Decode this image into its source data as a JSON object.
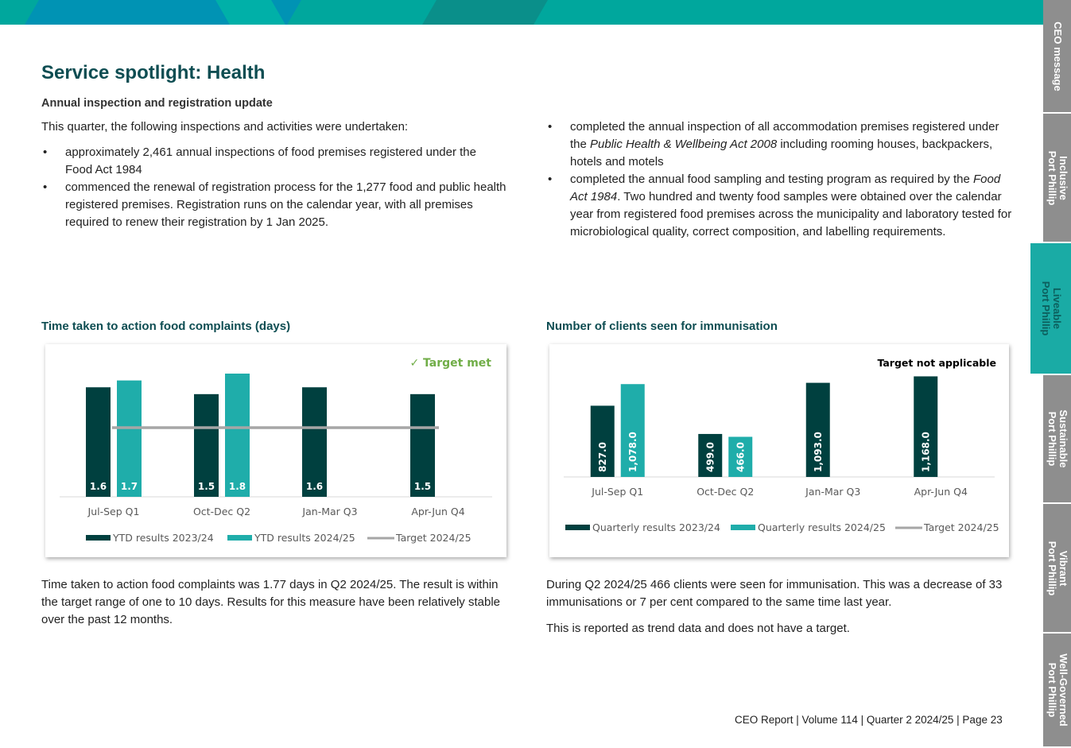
{
  "title": "Service spotlight: Health",
  "subtitle": "Annual inspection and registration update",
  "intro": "This quarter, the following inspections and activities were undertaken:",
  "left_bullets": [
    "approximately 2,461 annual inspections of food premises registered under the Food Act 1984",
    "commenced the renewal of registration process for the 1,277 food and public health registered premises. Registration runs on the calendar year, with all premises required to renew their registration by 1 Jan 2025."
  ],
  "right_bullets": [
    {
      "pre": "completed the annual inspection of all accommodation premises registered under the ",
      "em": "Public Health & Wellbeing Act 2008",
      "post": " including rooming houses, backpackers, hotels and motels"
    },
    {
      "pre": "completed the annual food sampling and testing program as required by the ",
      "em": "Food Act 1984",
      "post": ". Two hundred and twenty food samples were obtained over the calendar year from registered food premises across the municipality and laboratory tested for microbiological quality, correct composition, and labelling requirements."
    }
  ],
  "chart1_title": "Time taken to action food complaints (days)",
  "chart2_title": "Number of clients seen for immunisation",
  "chart1_text": "Time taken to action food complaints was 1.77 days in Q2 2024/25. The result is within the target range of one to 10 days. Results for this measure have been relatively stable over the past 12 months.",
  "chart2_text1": "During Q2 2024/25 466 clients were seen for immunisation. This was a decrease of 33 immunisations or 7 per cent compared to the same time last year.",
  "chart2_text2": "This is reported as trend data and does not have a target.",
  "footer": "CEO Report | Volume 114  | Quarter 2 2024/25 | Page 23",
  "side_tabs": [
    {
      "label": "CEO message",
      "active": false
    },
    {
      "label": "Inclusive\nPort Phillip",
      "active": false
    },
    {
      "label": "Liveable\nPort Phillip",
      "active": true
    },
    {
      "label": "Sustainable\nPort Phillip",
      "active": false
    },
    {
      "label": "Vibrant\nPort Phillip",
      "active": false
    },
    {
      "label": "Well-Governed\nPort Phillip",
      "active": false
    }
  ],
  "colors": {
    "dark": "#00403f",
    "teal": "#1fadaa",
    "target": "#a6a6a6",
    "heading": "#0e4d52",
    "check": "#70ad47"
  },
  "chart_data": [
    {
      "type": "bar",
      "badge": "✓ Target met",
      "categories": [
        "Jul-Sep Q1",
        "Oct-Dec Q2",
        "Jan-Mar Q3",
        "Apr-Jun Q4"
      ],
      "series": [
        {
          "name": "YTD results 2023/24",
          "values": [
            1.6,
            1.5,
            1.6,
            1.5
          ],
          "labels": [
            "1.6",
            "1.5",
            "1.6",
            "1.5"
          ]
        },
        {
          "name": "YTD results 2024/25",
          "values": [
            1.7,
            1.8,
            null,
            null
          ],
          "labels": [
            "1.7",
            "1.8",
            "",
            ""
          ]
        }
      ],
      "target": {
        "name": "Target 2024/25",
        "value": 1.0
      },
      "ylim": [
        0,
        1.8
      ]
    },
    {
      "type": "bar",
      "badge": "Target not applicable",
      "categories": [
        "Jul-Sep Q1",
        "Oct-Dec Q2",
        "Jan-Mar Q3",
        "Apr-Jun Q4"
      ],
      "series": [
        {
          "name": "Quarterly results 2023/24",
          "values": [
            827.0,
            499.0,
            1093.0,
            1168.0
          ],
          "labels": [
            "827.0",
            "499.0",
            "1,093.0",
            "1,168.0"
          ]
        },
        {
          "name": "Quarterly results 2024/25",
          "values": [
            1078.0,
            466.0,
            null,
            null
          ],
          "labels": [
            "1,078.0",
            "466.0",
            "",
            ""
          ]
        }
      ],
      "target": {
        "name": "Target 2024/25",
        "value": null
      },
      "ylim": [
        0,
        1200
      ]
    }
  ]
}
